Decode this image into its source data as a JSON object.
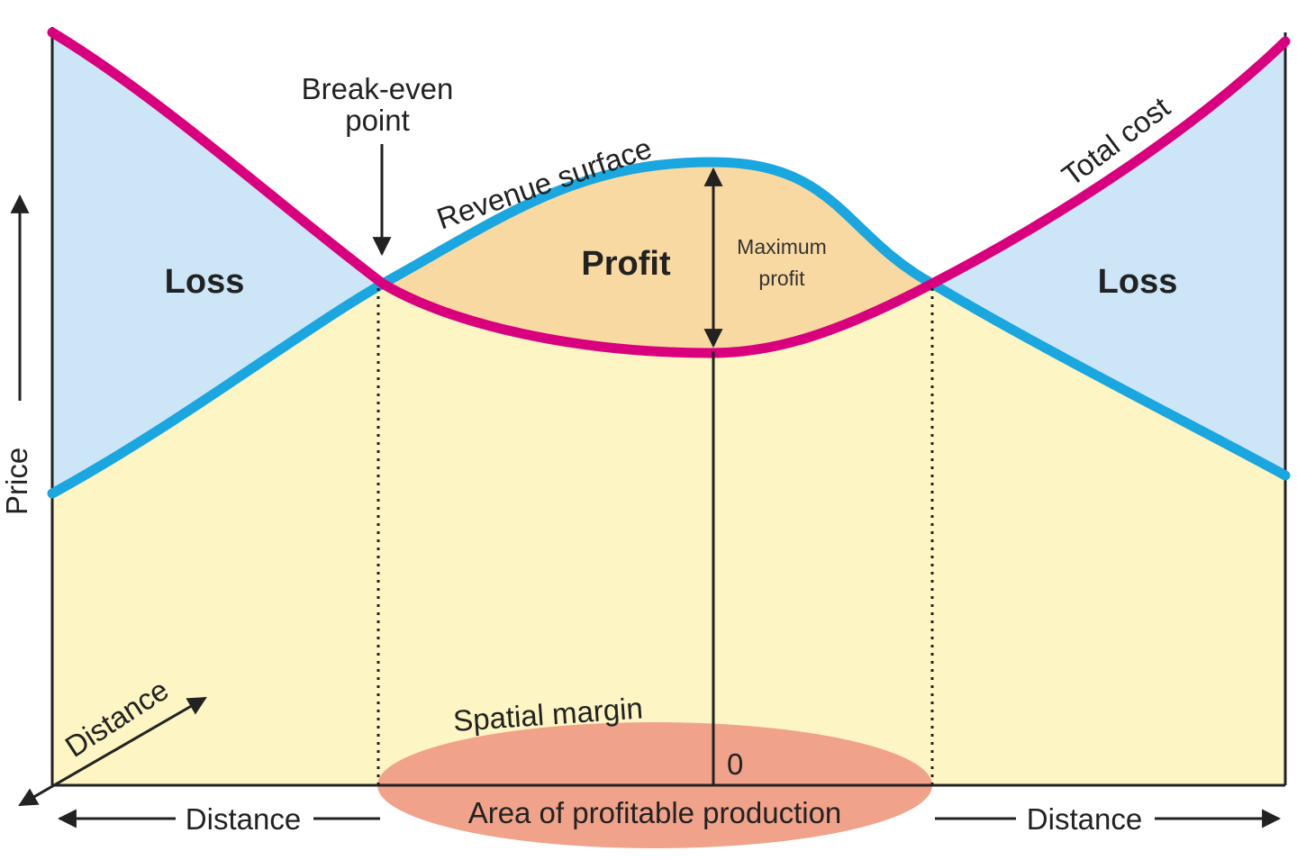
{
  "labels": {
    "break_even_line1": "Break-even",
    "break_even_line2": "point",
    "revenue_surface": "Revenue surface",
    "total_cost": "Total cost",
    "loss_left": "Loss",
    "loss_right": "Loss",
    "profit": "Profit",
    "maximum_profit_line1": "Maximum",
    "maximum_profit_line2": "profit",
    "price": "Price",
    "distance_diagonal": "Distance",
    "distance_left": "Distance",
    "distance_right": "Distance",
    "spatial_margin": "Spatial margin",
    "zero": "0",
    "area_of_profitable_production": "Area of profitable production"
  },
  "colors": {
    "loss_fill": "#cce6f8",
    "profit_fill": "#f9d9a2",
    "base_fill": "#fdf5c4",
    "revenue_curve": "#1aa6de",
    "cost_curve": "#d9007e",
    "spatial_ellipse": "#f1a28a",
    "ink": "#222222"
  }
}
